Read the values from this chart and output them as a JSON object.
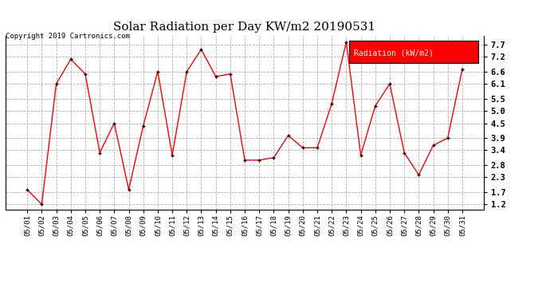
{
  "title": "Solar Radiation per Day KW/m2 20190531",
  "copyright": "Copyright 2019 Cartronics.com",
  "legend_label": "Radiation (kW/m2)",
  "dates": [
    "05/01",
    "05/02",
    "05/03",
    "05/04",
    "05/05",
    "05/06",
    "05/07",
    "05/08",
    "05/09",
    "05/10",
    "05/11",
    "05/12",
    "05/13",
    "05/14",
    "05/15",
    "05/16",
    "05/17",
    "05/18",
    "05/19",
    "05/20",
    "05/21",
    "05/22",
    "05/23",
    "05/24",
    "05/25",
    "05/26",
    "05/27",
    "05/28",
    "05/29",
    "05/30",
    "05/31"
  ],
  "values": [
    1.8,
    1.2,
    6.1,
    7.1,
    6.5,
    3.3,
    4.5,
    1.8,
    4.4,
    6.6,
    3.2,
    6.6,
    7.5,
    6.4,
    6.5,
    3.0,
    3.0,
    3.1,
    4.0,
    3.5,
    3.5,
    5.3,
    7.8,
    3.2,
    5.2,
    6.1,
    3.3,
    2.4,
    3.6,
    3.9,
    6.7
  ],
  "line_color": "#ff0000",
  "marker_color": "#000000",
  "background_color": "#ffffff",
  "grid_color": "#b0b0b0",
  "ylim": [
    1.0,
    8.05
  ],
  "yticks": [
    1.2,
    1.7,
    2.3,
    2.8,
    3.4,
    3.9,
    4.5,
    5.0,
    5.5,
    6.1,
    6.6,
    7.2,
    7.7
  ],
  "title_fontsize": 11,
  "legend_bg_color": "#ff0000",
  "legend_text_color": "#ffffff"
}
